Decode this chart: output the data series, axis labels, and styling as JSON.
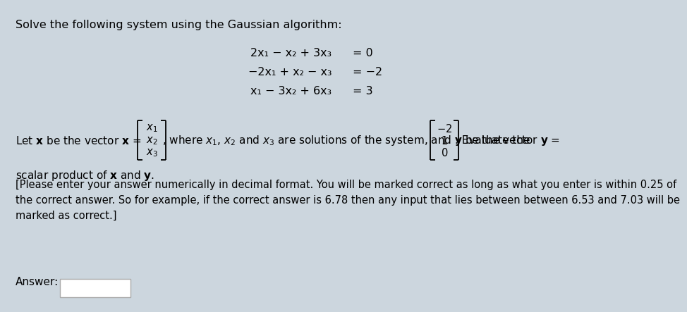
{
  "bg_color": "#ccd6de",
  "title": "Solve the following system using the Gaussian algorithm:",
  "eq_lines": [
    [
      "2x₁ − x₂ + 3x₃",
      "= 0"
    ],
    [
      "−2x₁ + x₂ − x₃",
      "= −2"
    ],
    [
      "x₁ − 3x₂ + 6x₃",
      "= 3"
    ]
  ],
  "disc1": "[Please enter your answer numerically in decimal format. You will be marked correct as long as what you enter is within 0.25 of",
  "disc2": "the correct answer. So for example, if the correct answer is 6.78 then any input that lies between between 6.53 and 7.03 will be",
  "disc3": "marked as correct.]",
  "answer_label": "Answer:",
  "fs_title": 11.5,
  "fs_body": 11.0,
  "fs_eq": 11.5,
  "fs_small": 10.5
}
